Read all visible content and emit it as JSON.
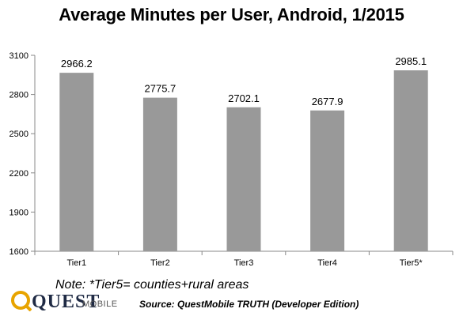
{
  "colors": {
    "bar": "#999999",
    "axis": "#888888",
    "logo_ring": "#e8a400",
    "logo_text": "#1f2a44"
  },
  "note": "Note: *Tier5= counties+rural areas",
  "logo": {
    "quest": "QUEST",
    "mobile": "MOBILE"
  },
  "source": "Source: QuestMobile TRUTH (Developer Edition)",
  "chart_data": {
    "type": "bar",
    "title": "Average Minutes per User, Android, 1/2015",
    "xlabel": "",
    "ylabel": "",
    "categories": [
      "Tier1",
      "Tier2",
      "Tier3",
      "Tier4",
      "Tier5*"
    ],
    "values": [
      2966.2,
      2775.7,
      2702.1,
      2677.9,
      2985.1
    ],
    "value_labels": [
      "2966.2",
      "2775.7",
      "2702.1",
      "2677.9",
      "2985.1"
    ],
    "ylim": [
      1600,
      3100
    ],
    "yticks": [
      1600,
      1900,
      2200,
      2500,
      2800,
      3100
    ],
    "grid": false,
    "legend": "none"
  }
}
